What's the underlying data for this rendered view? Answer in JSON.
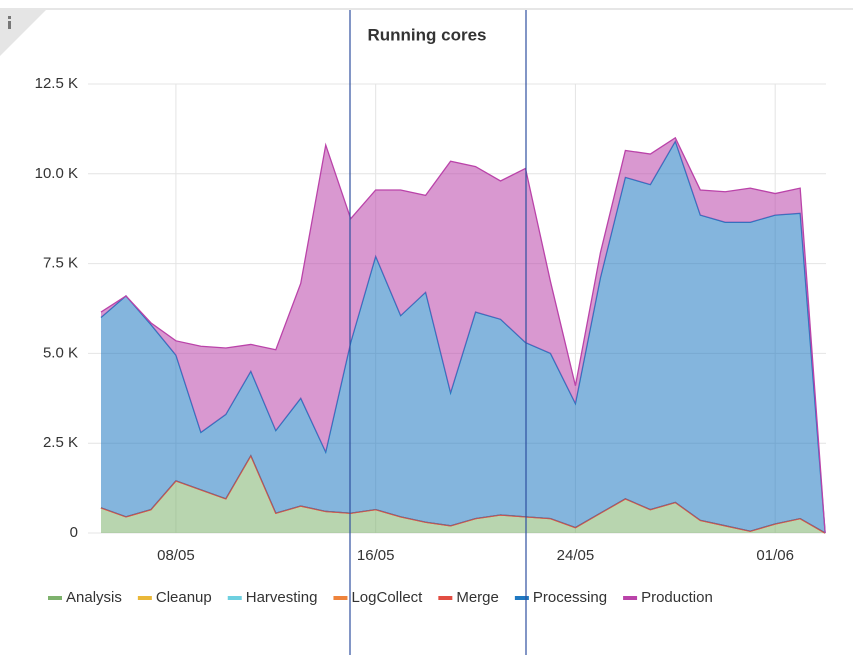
{
  "chart_data": {
    "type": "stacked_area",
    "title": "Running cores",
    "categories": [
      null,
      null,
      null,
      "08/05",
      null,
      null,
      null,
      null,
      null,
      null,
      null,
      "16/05",
      null,
      null,
      null,
      null,
      null,
      null,
      null,
      "24/05",
      null,
      null,
      null,
      null,
      null,
      null,
      null,
      "01/06",
      null,
      null
    ],
    "series": [
      {
        "name": "Analysis",
        "color": "#7eb26d",
        "values": [
          700,
          450,
          650,
          1450,
          1200,
          950,
          2150,
          550,
          750,
          600,
          550,
          650,
          450,
          300,
          200,
          400,
          500,
          450,
          400,
          150,
          550,
          950,
          650,
          850,
          350,
          200,
          50,
          250,
          400,
          0
        ]
      },
      {
        "name": "Cleanup",
        "color": "#eab839",
        "values": [
          0,
          0,
          0,
          0,
          0,
          0,
          0,
          0,
          0,
          0,
          0,
          0,
          0,
          0,
          0,
          0,
          0,
          0,
          0,
          0,
          0,
          0,
          0,
          0,
          0,
          0,
          0,
          0,
          0,
          0
        ]
      },
      {
        "name": "Harvesting",
        "color": "#6ed0e0",
        "values": [
          0,
          0,
          0,
          0,
          0,
          0,
          0,
          0,
          0,
          0,
          0,
          0,
          0,
          0,
          0,
          0,
          0,
          0,
          0,
          0,
          0,
          0,
          0,
          0,
          0,
          0,
          0,
          0,
          0,
          0
        ]
      },
      {
        "name": "LogCollect",
        "color": "#ef843c",
        "values": [
          0,
          0,
          0,
          0,
          0,
          0,
          0,
          0,
          0,
          0,
          0,
          0,
          0,
          0,
          0,
          0,
          0,
          0,
          0,
          0,
          0,
          0,
          0,
          0,
          0,
          0,
          0,
          0,
          0,
          0
        ]
      },
      {
        "name": "Merge",
        "color": "#e24d42",
        "values": [
          0,
          0,
          0,
          0,
          0,
          0,
          0,
          0,
          0,
          0,
          0,
          0,
          0,
          0,
          0,
          0,
          0,
          0,
          0,
          0,
          0,
          0,
          0,
          0,
          0,
          0,
          0,
          0,
          0,
          0
        ]
      },
      {
        "name": "Processing",
        "color": "#1f78c1",
        "values": [
          5300,
          6150,
          5150,
          3500,
          1600,
          2350,
          2350,
          2300,
          3000,
          1650,
          4750,
          7050,
          5600,
          6400,
          3700,
          5750,
          5450,
          4850,
          4600,
          3450,
          6550,
          8950,
          9050,
          10050,
          8500,
          8450,
          8600,
          8600,
          8500,
          0
        ]
      },
      {
        "name": "Production",
        "color": "#ba43a9",
        "values": [
          150,
          0,
          50,
          400,
          2400,
          1850,
          750,
          2250,
          3200,
          8550,
          3450,
          1850,
          3500,
          2700,
          6450,
          4050,
          3850,
          4850,
          2000,
          500,
          700,
          750,
          850,
          100,
          700,
          850,
          950,
          600,
          700,
          0
        ]
      }
    ],
    "ylim": [
      0,
      12500
    ],
    "yticks": [
      0,
      {
        "value": 2500,
        "label": "2.5 K"
      },
      {
        "value": 5000,
        "label": "5.0 K"
      },
      {
        "value": 7500,
        "label": "7.5 K"
      },
      {
        "value": 10000,
        "label": "10.0 K"
      },
      {
        "value": 12500,
        "label": "12.5 K"
      }
    ],
    "grid": true,
    "legend": "bottom"
  }
}
